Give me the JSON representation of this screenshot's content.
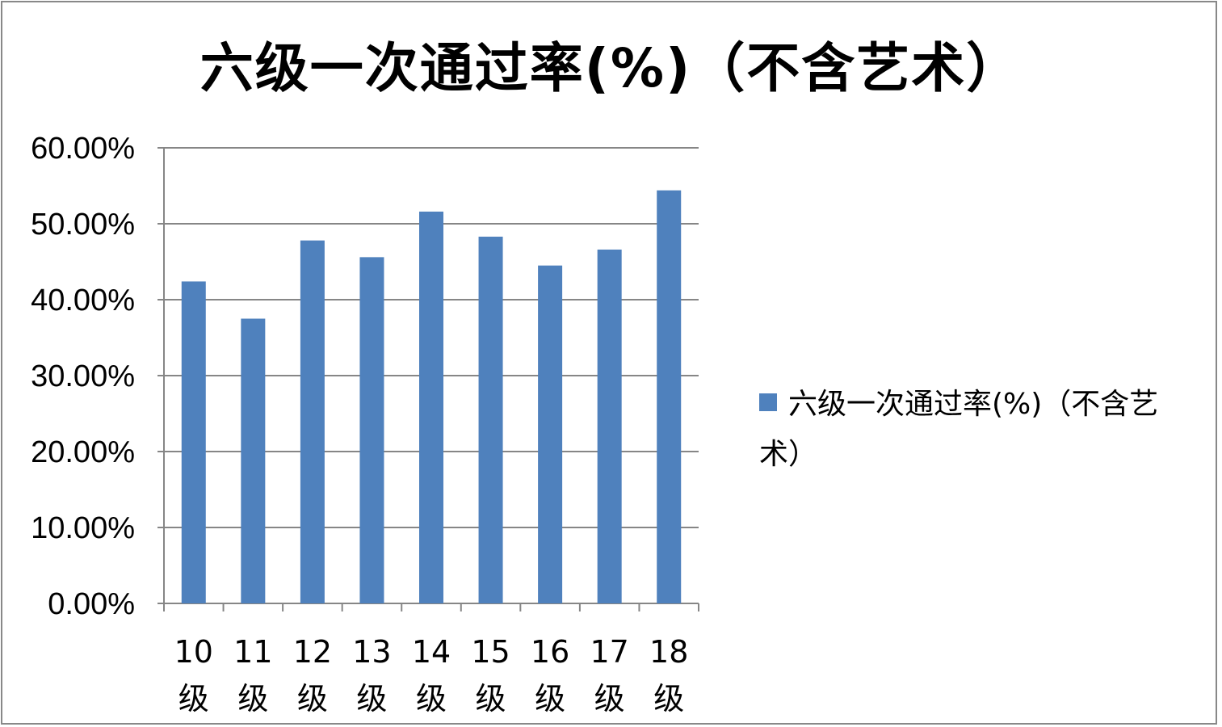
{
  "chart_data": {
    "type": "bar",
    "title": "六级一次通过率(%)（不含艺术）",
    "categories": [
      "10级",
      "11级",
      "12级",
      "13级",
      "14级",
      "15级",
      "16级",
      "17级",
      "18级"
    ],
    "series": [
      {
        "name": "六级一次通过率(%)（不含艺术）",
        "values": [
          42.4,
          37.5,
          47.8,
          45.6,
          51.6,
          48.3,
          44.5,
          46.6,
          54.4
        ],
        "color": "#4f81bd"
      }
    ],
    "yticks": [
      "0.00%",
      "10.00%",
      "20.00%",
      "30.00%",
      "40.00%",
      "50.00%",
      "60.00%"
    ],
    "ylim": [
      0,
      60
    ],
    "grid": true,
    "legend_position": "right"
  }
}
